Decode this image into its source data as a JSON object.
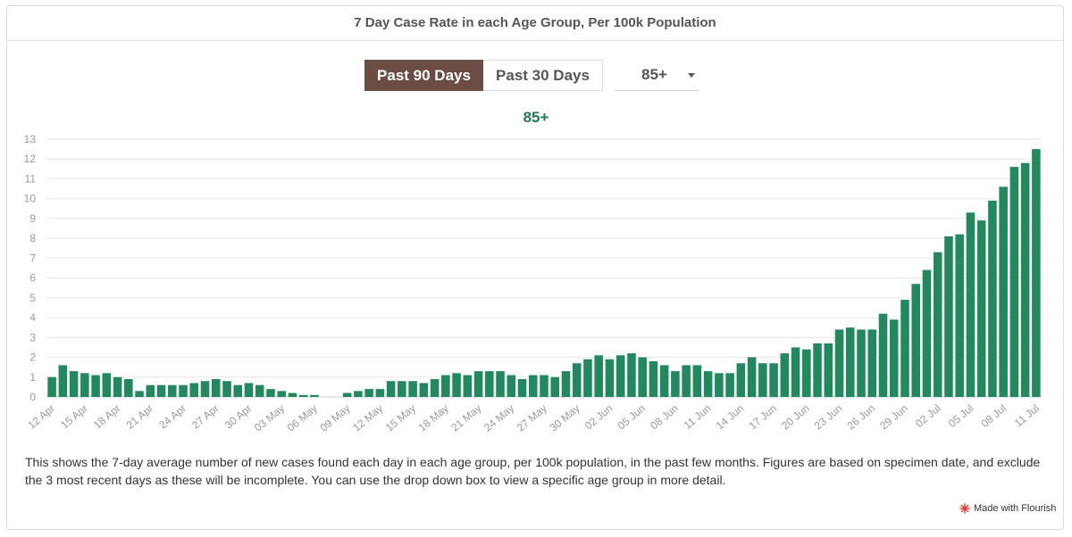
{
  "title": "7 Day Case Rate in each Age Group, Per 100k Population",
  "controls": {
    "past90": "Past 90 Days",
    "past30": "Past 30 Days",
    "age_select": "85+"
  },
  "subtitle": "85+",
  "description": "This shows the 7-day average number of new cases found each day in each age group, per 100k population, in the past few months. Figures are based on specimen date, and exclude the 3 most recent days as these will be incomplete. You can use the drop down box to view a specific age group in more detail.",
  "credit": "Made with Flourish",
  "colors": {
    "bar": "#22895e",
    "active_button": "#6b4d44",
    "subtitle": "#1e7a52",
    "grid": "#e6e6e6",
    "credit_logo": "#e03a2f"
  },
  "chart_data": {
    "type": "bar",
    "title": "85+",
    "ylim": [
      0,
      13
    ],
    "yticks": [
      0,
      1,
      2,
      3,
      4,
      5,
      6,
      7,
      8,
      9,
      10,
      11,
      12,
      13
    ],
    "grid": true,
    "x_tick_labels": [
      "12 Apr",
      "15 Apr",
      "18 Apr",
      "21 Apr",
      "24 Apr",
      "27 Apr",
      "30 Apr",
      "03 May",
      "06 May",
      "09 May",
      "12 May",
      "15 May",
      "18 May",
      "21 May",
      "24 May",
      "27 May",
      "30 May",
      "02 Jun",
      "05 Jun",
      "08 Jun",
      "11 Jun",
      "14 Jun",
      "17 Jun",
      "20 Jun",
      "23 Jun",
      "26 Jun",
      "29 Jun",
      "02 Jul",
      "05 Jul",
      "08 Jul",
      "11 Jul"
    ],
    "values": [
      1.0,
      1.6,
      1.3,
      1.2,
      1.1,
      1.2,
      1.0,
      0.9,
      0.3,
      0.6,
      0.6,
      0.6,
      0.6,
      0.7,
      0.8,
      0.9,
      0.8,
      0.6,
      0.7,
      0.6,
      0.4,
      0.3,
      0.2,
      0.1,
      0.1,
      0,
      0,
      0.2,
      0.3,
      0.4,
      0.4,
      0.8,
      0.8,
      0.8,
      0.7,
      0.9,
      1.1,
      1.2,
      1.1,
      1.3,
      1.3,
      1.3,
      1.1,
      0.9,
      1.1,
      1.1,
      1.0,
      1.3,
      1.7,
      1.9,
      2.1,
      1.9,
      2.1,
      2.2,
      2.0,
      1.8,
      1.6,
      1.3,
      1.6,
      1.6,
      1.3,
      1.2,
      1.2,
      1.7,
      2.0,
      1.7,
      1.7,
      2.2,
      2.5,
      2.4,
      2.7,
      2.7,
      3.4,
      3.5,
      3.4,
      3.4,
      4.2,
      3.9,
      4.9,
      5.7,
      6.4,
      7.3,
      8.1,
      8.2,
      9.3,
      8.9,
      9.9,
      10.6,
      11.6,
      11.8,
      12.5
    ]
  }
}
